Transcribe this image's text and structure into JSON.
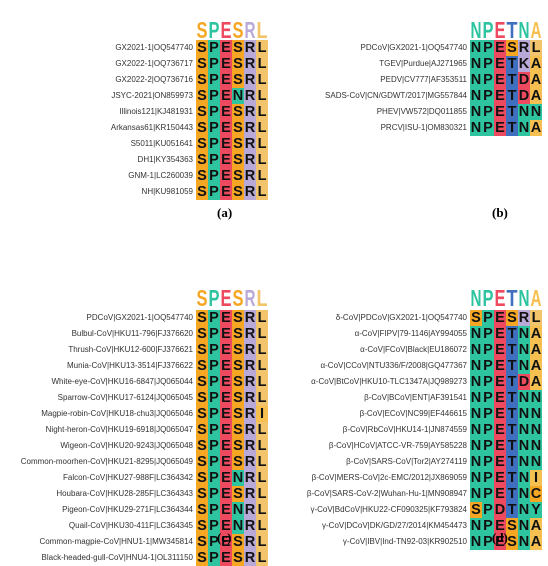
{
  "colors": {
    "S": "#f5a623",
    "P": "#2fc4a0",
    "E": "#ed4a5f",
    "R": "#b9a9d8",
    "L": "#f2c46b",
    "N": "#2fc4a0",
    "T": "#3f6fbf",
    "K": "#b9a9d8",
    "A": "#f5c04f",
    "D": "#ed4a5f",
    "C": "#f5a623",
    "I": "#f5c04f",
    "Y": "#2fc4a0",
    "V": "#f5c04f",
    "G": "#f5c04f",
    "M": "#f5c04f"
  },
  "panels": [
    {
      "caption": "(a)",
      "logo": [
        "S",
        "P",
        "E",
        "S",
        "R",
        "L"
      ],
      "rows": [
        {
          "label": "GX2021-1|OQ547740",
          "seq": "SPESRL"
        },
        {
          "label": "GX2022-1|OQ736717",
          "seq": "SPESRL"
        },
        {
          "label": "GX2022-2|OQ736716",
          "seq": "SPESRL"
        },
        {
          "label": "JSYC-2021|ON859973",
          "seq": "SPENRL"
        },
        {
          "label": "Illinois121|KJ481931",
          "seq": "SPESRL"
        },
        {
          "label": "Arkansas61|KR150443",
          "seq": "SPESRL"
        },
        {
          "label": "S5011|KU051641",
          "seq": "SPESRL"
        },
        {
          "label": "DH1|KY354363",
          "seq": "SPESRL"
        },
        {
          "label": "GNM-1|LC260039",
          "seq": "SPESRL"
        },
        {
          "label": "NH|KU981059",
          "seq": "SPESRL"
        }
      ]
    },
    {
      "caption": "(b)",
      "logo": [
        "N",
        "P",
        "E",
        "T",
        "N",
        "A"
      ],
      "rows": [
        {
          "label": "PDCoV|GX2021-1|OQ547740",
          "seq": "NPESRL"
        },
        {
          "label": "TGEV|Purdue|AJ271965",
          "seq": "NPETKA"
        },
        {
          "label": "PEDV|CV777|AF353511",
          "seq": "NPETDA"
        },
        {
          "label": "SADS-CoV|CN/GDWT/2017|MG557844",
          "seq": "NPETDA"
        },
        {
          "label": "PHEV|VW572|DQ011855",
          "seq": "NPETNN"
        },
        {
          "label": "PRCV|ISU-1|OM830321",
          "seq": "NPETNA"
        }
      ]
    },
    {
      "caption": "(c)",
      "logo": [
        "S",
        "P",
        "E",
        "S",
        "R",
        "L"
      ],
      "rows": [
        {
          "label": "PDCoV|GX2021-1|OQ547740",
          "seq": "SPESRL"
        },
        {
          "label": "Bulbul-CoV|HKU11-796|FJ376620",
          "seq": "SPESRL"
        },
        {
          "label": "Thrush-CoV|HKU12-600|FJ376621",
          "seq": "SPESRL"
        },
        {
          "label": "Munia-CoV|HKU13-3514|FJ376622",
          "seq": "SPESRL"
        },
        {
          "label": "White-eye-CoV|HKU16-6847|JQ065044",
          "seq": "SPESRL"
        },
        {
          "label": "Sparrow-CoV|HKU17-6124|JQ065045",
          "seq": "SPESRL"
        },
        {
          "label": "Magpie-robin-CoV|HKU18-chu3|JQ065046",
          "seq": "SPESRI"
        },
        {
          "label": "Night-heron-CoV|HKU19-6918|JQ065047",
          "seq": "SPESRL"
        },
        {
          "label": "Wigeon-CoV|HKU20-9243|JQ065048",
          "seq": "SPESRL"
        },
        {
          "label": "Common-moorhen-CoV|HKU21-8295|JQ065049",
          "seq": "SPESRL"
        },
        {
          "label": "Falcon-CoV|HKU27-988F|LC364342",
          "seq": "SPENRL"
        },
        {
          "label": "Houbara-CoV|HKU28-285F|LC364343",
          "seq": "SPESRL"
        },
        {
          "label": "Pigeon-CoV|HKU29-271F|LC364344",
          "seq": "SPENRL"
        },
        {
          "label": "Quail-CoV|HKU30-411F|LC364345",
          "seq": "SPENRL"
        },
        {
          "label": "Common-magpie-CoV|HNU1-1|MW345814",
          "seq": "SPESRL"
        },
        {
          "label": "Black-headed-gull-CoV|HNU4-1|OL311150",
          "seq": "SPESRL"
        }
      ]
    },
    {
      "caption": "(d)",
      "logo": [
        "N",
        "P",
        "E",
        "T",
        "N",
        "A"
      ],
      "rows": [
        {
          "label": "δ-CoV|PDCoV|GX2021-1|OQ547740",
          "seq": "SPESRL"
        },
        {
          "label": "α-CoV|FIPV|79-1146|AY994055",
          "seq": "NPETNA"
        },
        {
          "label": "α-CoV|FCoV|Black|EU186072",
          "seq": "NPETNA"
        },
        {
          "label": "α-CoV|CCoV|NTU336/F/2008|GQ477367",
          "seq": "NPETNA"
        },
        {
          "label": "α-CoV|BtCoV|HKU10-TLC1347A|JQ989273",
          "seq": "NPETDA"
        },
        {
          "label": "β-CoV|BCoV|ENT|AF391541",
          "seq": "NPETNN"
        },
        {
          "label": "β-CoV|ECoV|NC99|EF446615",
          "seq": "NPETNN"
        },
        {
          "label": "β-CoV|RbCoV|HKU14-1|JN874559",
          "seq": "NPETNN"
        },
        {
          "label": "β-CoV|HCoV|ATCC-VR-759|AY585228",
          "seq": "NPETNN"
        },
        {
          "label": "β-CoV|SARS-CoV|Tor2|AY274119",
          "seq": "NPETNN"
        },
        {
          "label": "β-CoV|MERS-CoV|2c-EMC/2012|JX869059",
          "seq": "NPETNI"
        },
        {
          "label": "β-CoV|SARS-CoV-2|Wuhan-Hu-1|MN908947",
          "seq": "NPETNC"
        },
        {
          "label": "γ-CoV|BdCoV|HKU22-CF090325|KF793824",
          "seq": "SPDTNY"
        },
        {
          "label": "γ-CoV|DCoV|DK/GD/27/2014|KM454473",
          "seq": "NPESNA"
        },
        {
          "label": "γ-CoV|IBV|Ind-TN92-03|KR902510",
          "seq": "NPESNA"
        }
      ]
    }
  ]
}
